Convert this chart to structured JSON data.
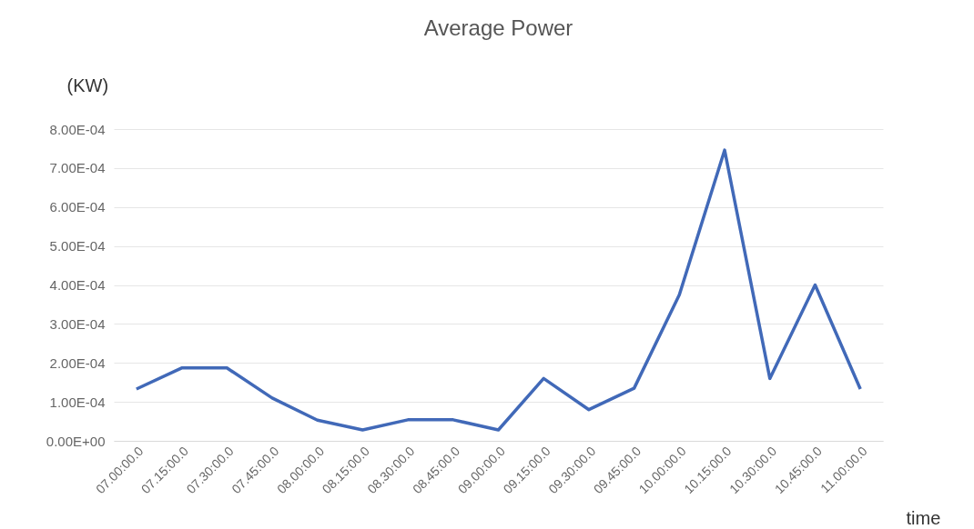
{
  "chart_data": {
    "type": "line",
    "title": "Average Power",
    "xlabel": "time",
    "ylabel": "(KW)",
    "categories": [
      "07.00:00.0",
      "07.15:00.0",
      "07.30:00.0",
      "07.45:00.0",
      "08.00:00.0",
      "08.15:00.0",
      "08.30:00.0",
      "08.45:00.0",
      "09.00:00.0",
      "09.15:00.0",
      "09.30:00.0",
      "09.45:00.0",
      "10.00:00.0",
      "10.15:00.0",
      "10.30:00.0",
      "10.45:00.0",
      "11.00:00.0"
    ],
    "series": [
      {
        "color": "#4169b8",
        "values": [
          0.000133,
          0.000187,
          0.000187,
          0.00011,
          5.3e-05,
          2.8e-05,
          5.4e-05,
          5.4e-05,
          2.8e-05,
          0.00016,
          8e-05,
          0.000135,
          0.000375,
          0.000746,
          0.00016,
          0.0004,
          0.000133
        ]
      }
    ],
    "ylim": [
      0,
      0.0008
    ],
    "yticks": [
      {
        "value": 0,
        "label": "0.00E+00"
      },
      {
        "value": 0.0001,
        "label": "1.00E-04"
      },
      {
        "value": 0.0002,
        "label": "2.00E-04"
      },
      {
        "value": 0.0003,
        "label": "3.00E-04"
      },
      {
        "value": 0.0004,
        "label": "4.00E-04"
      },
      {
        "value": 0.0005,
        "label": "5.00E-04"
      },
      {
        "value": 0.0006,
        "label": "6.00E-04"
      },
      {
        "value": 0.0007,
        "label": "7.00E-04"
      },
      {
        "value": 0.0008,
        "label": "8.00E-04"
      }
    ],
    "grid": "y",
    "legend": false,
    "marker": "none",
    "line_style": "solid"
  }
}
